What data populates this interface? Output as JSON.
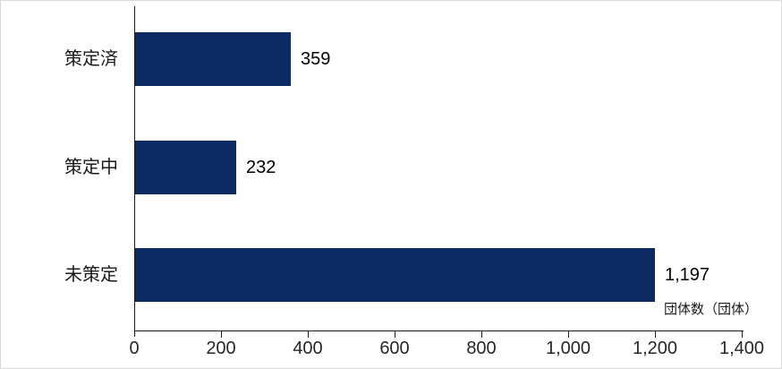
{
  "chart_data": {
    "type": "bar",
    "orientation": "horizontal",
    "title": "",
    "xlabel": "団体数（団体）",
    "ylabel": "",
    "categories": [
      "策定済",
      "策定中",
      "未策定"
    ],
    "values": [
      359,
      232,
      1197
    ],
    "value_labels": [
      "359",
      "232",
      "1,197"
    ],
    "x_ticks": [
      "0",
      "200",
      "400",
      "600",
      "800",
      "1,000",
      "1,200",
      "1,400"
    ],
    "xlim": [
      0,
      1400
    ],
    "grid": "off",
    "legend": "none",
    "axis_note": "団体数（団体）",
    "colors": {
      "bar": "#0e2a63",
      "axis": "#1a1a1a",
      "text": "#1a1a1a",
      "frame_border": "#d9d9d9",
      "background": "#ffffff"
    }
  }
}
